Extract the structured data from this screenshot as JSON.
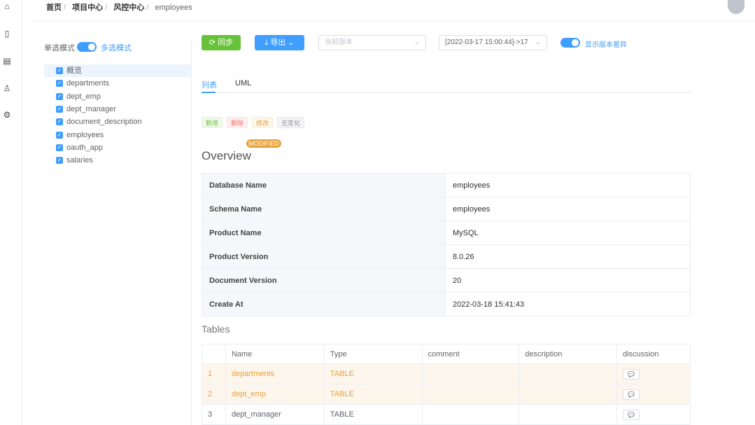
{
  "breadcrumb": [
    "首页",
    "项目中心",
    "风控中心",
    "employees"
  ],
  "rail_icons": [
    "home-icon",
    "book-icon",
    "clipboard-icon",
    "user-icon",
    "gear-icon"
  ],
  "mode": {
    "single": "单选模式",
    "multi": "多选模式",
    "multi_enabled": true
  },
  "tree": [
    {
      "label": "概览",
      "checked": true,
      "selected": true
    },
    {
      "label": "departments",
      "checked": true
    },
    {
      "label": "dept_emp",
      "checked": true
    },
    {
      "label": "dept_manager",
      "checked": true
    },
    {
      "label": "document_description",
      "checked": true
    },
    {
      "label": "employees",
      "checked": true
    },
    {
      "label": "oauth_app",
      "checked": true
    },
    {
      "label": "salaries",
      "checked": true
    }
  ],
  "toolbar": {
    "sync": "同步",
    "export": "导出",
    "current_version_placeholder": "当前版本",
    "compare_version": "[2022-03-17 15:00:44]->17",
    "show_diff": "显示版本差异",
    "show_diff_enabled": true
  },
  "tabs": [
    {
      "label": "列表",
      "active": true
    },
    {
      "label": "UML"
    }
  ],
  "legend": [
    {
      "label": "新增",
      "color": "#67c23a"
    },
    {
      "label": "删除",
      "color": "#f56c6c"
    },
    {
      "label": "修改",
      "color": "#e6a23c"
    },
    {
      "label": "无变化",
      "color": "#909399"
    }
  ],
  "overview": {
    "badge": "MODIFIED",
    "title": "Overview",
    "rows": [
      [
        "Database Name",
        "employees"
      ],
      [
        "Schema Name",
        "employees"
      ],
      [
        "Product Name",
        "MySQL"
      ],
      [
        "Product Version",
        "8.0.26"
      ],
      [
        "Document Version",
        "20"
      ],
      [
        "Create At",
        "2022-03-18 15:41:43"
      ]
    ]
  },
  "tables": {
    "title": "Tables",
    "columns": [
      "",
      "Name",
      "Type",
      "comment",
      "description",
      "discussion"
    ],
    "rows": [
      {
        "no": "1",
        "name": "departments",
        "type": "TABLE",
        "comment": "",
        "description": "",
        "modified": true
      },
      {
        "no": "2",
        "name": "dept_emp",
        "type": "TABLE",
        "comment": "",
        "description": "",
        "modified": true
      },
      {
        "no": "3",
        "name": "dept_manager",
        "type": "TABLE",
        "comment": "",
        "description": "",
        "modified": false
      }
    ]
  }
}
